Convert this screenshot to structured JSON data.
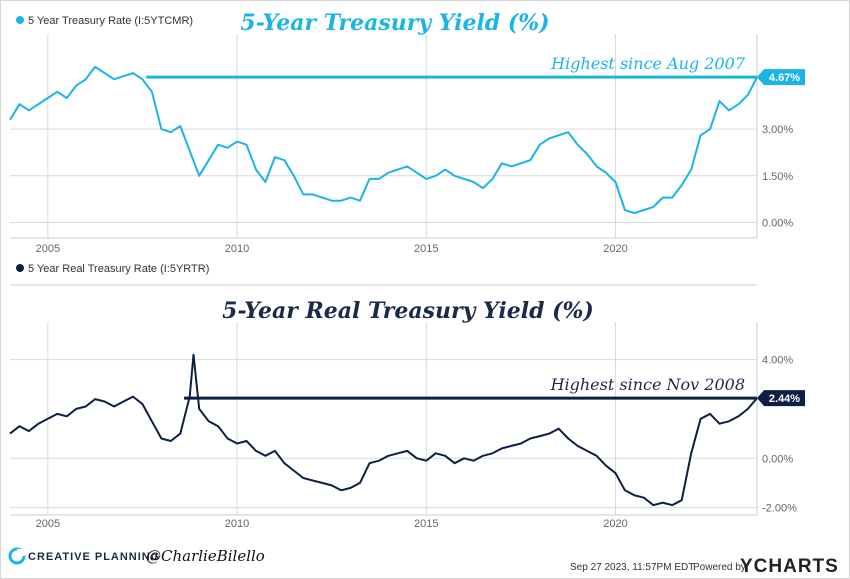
{
  "chart_data": [
    {
      "type": "line",
      "legend": "5 Year Treasury Rate (I:5YTCMR)",
      "title": "5-Year Treasury Yield (%)",
      "annotation": "Highest since Aug 2007",
      "current_label": "4.67%",
      "current_value": 4.67,
      "reference_start_year": 2007.6,
      "color": "#1ab4e8",
      "ylim": [
        -0.5,
        5.8
      ],
      "yticks": [
        0,
        1.5,
        3.0
      ],
      "ytick_labels": [
        "0.00%",
        "1.50%",
        "3.00%"
      ],
      "x": [
        2004.0,
        2004.25,
        2004.5,
        2004.75,
        2005.0,
        2005.25,
        2005.5,
        2005.75,
        2006.0,
        2006.25,
        2006.5,
        2006.75,
        2007.0,
        2007.25,
        2007.5,
        2007.75,
        2008.0,
        2008.25,
        2008.5,
        2008.75,
        2009.0,
        2009.25,
        2009.5,
        2009.75,
        2010.0,
        2010.25,
        2010.5,
        2010.75,
        2011.0,
        2011.25,
        2011.5,
        2011.75,
        2012.0,
        2012.25,
        2012.5,
        2012.75,
        2013.0,
        2013.25,
        2013.5,
        2013.75,
        2014.0,
        2014.25,
        2014.5,
        2014.75,
        2015.0,
        2015.25,
        2015.5,
        2015.75,
        2016.0,
        2016.25,
        2016.5,
        2016.75,
        2017.0,
        2017.25,
        2017.5,
        2017.75,
        2018.0,
        2018.25,
        2018.5,
        2018.75,
        2019.0,
        2019.25,
        2019.5,
        2019.75,
        2020.0,
        2020.25,
        2020.5,
        2020.75,
        2021.0,
        2021.25,
        2021.5,
        2021.75,
        2022.0,
        2022.25,
        2022.5,
        2022.75,
        2023.0,
        2023.25,
        2023.5,
        2023.74
      ],
      "values": [
        3.3,
        3.8,
        3.6,
        3.8,
        4.0,
        4.2,
        4.0,
        4.4,
        4.6,
        5.0,
        4.8,
        4.6,
        4.7,
        4.8,
        4.6,
        4.2,
        3.0,
        2.9,
        3.1,
        2.3,
        1.5,
        2.0,
        2.5,
        2.4,
        2.6,
        2.5,
        1.7,
        1.3,
        2.1,
        2.0,
        1.5,
        0.9,
        0.9,
        0.8,
        0.7,
        0.7,
        0.8,
        0.7,
        1.4,
        1.4,
        1.6,
        1.7,
        1.8,
        1.6,
        1.4,
        1.5,
        1.7,
        1.5,
        1.4,
        1.3,
        1.1,
        1.4,
        1.9,
        1.8,
        1.9,
        2.0,
        2.5,
        2.7,
        2.8,
        2.9,
        2.5,
        2.2,
        1.8,
        1.6,
        1.3,
        0.4,
        0.3,
        0.4,
        0.5,
        0.8,
        0.8,
        1.2,
        1.7,
        2.8,
        3.0,
        3.9,
        3.6,
        3.8,
        4.1,
        4.67
      ]
    },
    {
      "type": "line",
      "legend": "5 Year Real Treasury Rate (I:5YRTR)",
      "title": "5-Year Real Treasury Yield (%)",
      "annotation": "Highest since Nov 2008",
      "current_label": "2.44%",
      "current_value": 2.44,
      "reference_start_year": 2008.6,
      "color": "#0d1f45",
      "ylim": [
        -2.3,
        5.2
      ],
      "yticks": [
        -2.0,
        0.0,
        4.0
      ],
      "ytick_labels": [
        "-2.00%",
        "0.00%",
        "4.00%"
      ],
      "x": [
        2004.0,
        2004.25,
        2004.5,
        2004.75,
        2005.0,
        2005.25,
        2005.5,
        2005.75,
        2006.0,
        2006.25,
        2006.5,
        2006.75,
        2007.0,
        2007.25,
        2007.5,
        2007.75,
        2008.0,
        2008.25,
        2008.5,
        2008.75,
        2008.85,
        2009.0,
        2009.25,
        2009.5,
        2009.75,
        2010.0,
        2010.25,
        2010.5,
        2010.75,
        2011.0,
        2011.25,
        2011.5,
        2011.75,
        2012.0,
        2012.25,
        2012.5,
        2012.75,
        2013.0,
        2013.25,
        2013.5,
        2013.75,
        2014.0,
        2014.25,
        2014.5,
        2014.75,
        2015.0,
        2015.25,
        2015.5,
        2015.75,
        2016.0,
        2016.25,
        2016.5,
        2016.75,
        2017.0,
        2017.25,
        2017.5,
        2017.75,
        2018.0,
        2018.25,
        2018.5,
        2018.75,
        2019.0,
        2019.25,
        2019.5,
        2019.75,
        2020.0,
        2020.25,
        2020.5,
        2020.75,
        2021.0,
        2021.25,
        2021.5,
        2021.75,
        2022.0,
        2022.25,
        2022.5,
        2022.75,
        2023.0,
        2023.25,
        2023.5,
        2023.74
      ],
      "values": [
        1.0,
        1.3,
        1.1,
        1.4,
        1.6,
        1.8,
        1.7,
        2.0,
        2.1,
        2.4,
        2.3,
        2.1,
        2.3,
        2.5,
        2.2,
        1.5,
        0.8,
        0.7,
        1.0,
        2.5,
        4.2,
        2.0,
        1.5,
        1.3,
        0.8,
        0.6,
        0.7,
        0.3,
        0.1,
        0.3,
        -0.2,
        -0.5,
        -0.8,
        -0.9,
        -1.0,
        -1.1,
        -1.3,
        -1.2,
        -1.0,
        -0.2,
        -0.1,
        0.1,
        0.2,
        0.3,
        0.0,
        -0.1,
        0.2,
        0.1,
        -0.2,
        0.0,
        -0.1,
        0.1,
        0.2,
        0.4,
        0.5,
        0.6,
        0.8,
        0.9,
        1.0,
        1.2,
        0.8,
        0.5,
        0.3,
        0.1,
        -0.3,
        -0.6,
        -1.3,
        -1.5,
        -1.6,
        -1.9,
        -1.8,
        -1.9,
        -1.7,
        0.2,
        1.6,
        1.8,
        1.4,
        1.5,
        1.7,
        2.0,
        2.44
      ]
    }
  ],
  "x_axis": {
    "range": [
      2004.0,
      2023.74
    ],
    "ticks": [
      2005,
      2010,
      2015,
      2020
    ],
    "tick_labels": [
      "2005",
      "2010",
      "2015",
      "2020"
    ]
  },
  "footer": {
    "brand": "CREATIVE PLANNING",
    "handle": "@CharlieBilello",
    "date": "Sep 27 2023, 11:57PM EDT.",
    "powered_by": "Powered by",
    "ycharts": "YCHARTS"
  },
  "colors": {
    "nominal": "#1ab4e8",
    "real": "#0d1f45",
    "grid": "#d9d9d9"
  }
}
